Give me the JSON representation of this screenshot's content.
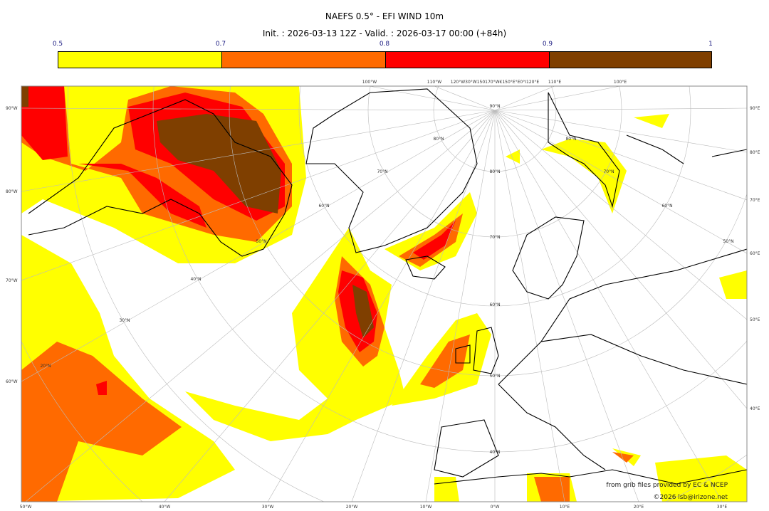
{
  "title": "NAEFS 0.5° - EFI WIND 10m",
  "subtitle": "Init. : 2026-03-13 12Z - Valid. : 2026-03-17 00:00 (+84h)",
  "colorbar": {
    "ticks": [
      "0.5",
      "0.7",
      "0.8",
      "0.9",
      "1"
    ],
    "colors": [
      "#ffff00",
      "#ff6a00",
      "#ff0000",
      "#7f3f00"
    ]
  },
  "axes": {
    "left": [
      "90°W",
      "80°W",
      "70°W",
      "60°W"
    ],
    "right": [
      "90°E",
      "80°E",
      "70°E",
      "60°E",
      "50°E",
      "40°E"
    ],
    "bottom": [
      "50°W",
      "40°W",
      "30°W",
      "20°W",
      "10°W",
      "0°W",
      "10°E",
      "20°E",
      "30°E"
    ],
    "top": [
      "100°W",
      "110°W",
      "120°W30°W150170°W€150°E°E0°I120°E",
      "110°E",
      "100°E"
    ],
    "lat_center": [
      "90°N",
      "80°N",
      "70°N",
      "60°N",
      "50°N",
      "40°N"
    ],
    "lat_left": [
      "80°N",
      "70°N",
      "60°N",
      "50°N",
      "40°N",
      "30°N",
      "20°N"
    ],
    "lat_right": [
      "80°N",
      "70°N",
      "60°N",
      "50°N"
    ]
  },
  "credits": {
    "line1": "from grib files provided by EC & NCEP",
    "line2": "©2026 lsb@irizone.net"
  }
}
